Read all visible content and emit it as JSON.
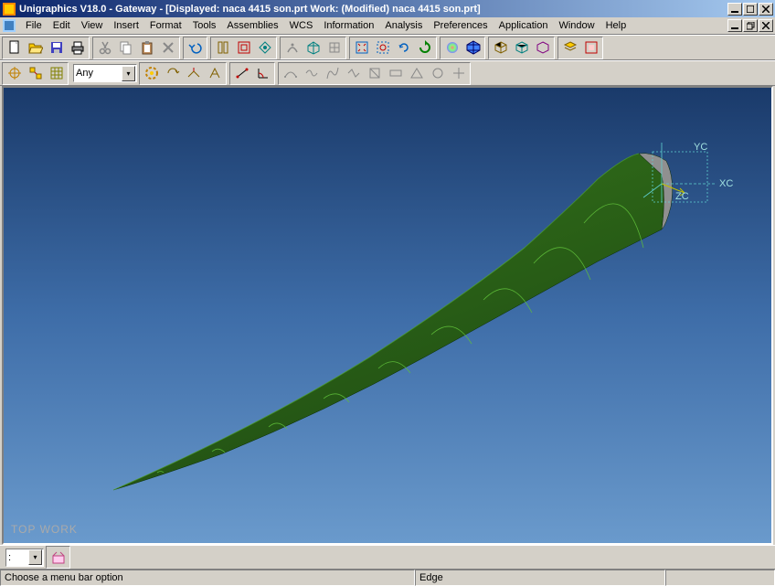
{
  "title": "Unigraphics V18.0 - Gateway - [Displayed: naca 4415 son.prt   Work:  (Modified) naca 4415 son.prt]",
  "menu": [
    "File",
    "Edit",
    "View",
    "Insert",
    "Format",
    "Tools",
    "Assemblies",
    "WCS",
    "Information",
    "Analysis",
    "Preferences",
    "Application",
    "Window",
    "Help"
  ],
  "combo_layer": "Any",
  "combo_bottom": ":",
  "status_left": "Choose a menu bar option",
  "status_mid": "Edge",
  "view_label": "TOP WORK",
  "axis": {
    "xc": "XC",
    "yc": "YC",
    "zc": "ZC"
  },
  "colors": {
    "wing_dark": "#1e4a12",
    "wing_mid": "#2d6618",
    "wing_light": "#4a8a2e",
    "wing_edge": "#5fbf3a",
    "axis_box": "#5fd0d0"
  }
}
